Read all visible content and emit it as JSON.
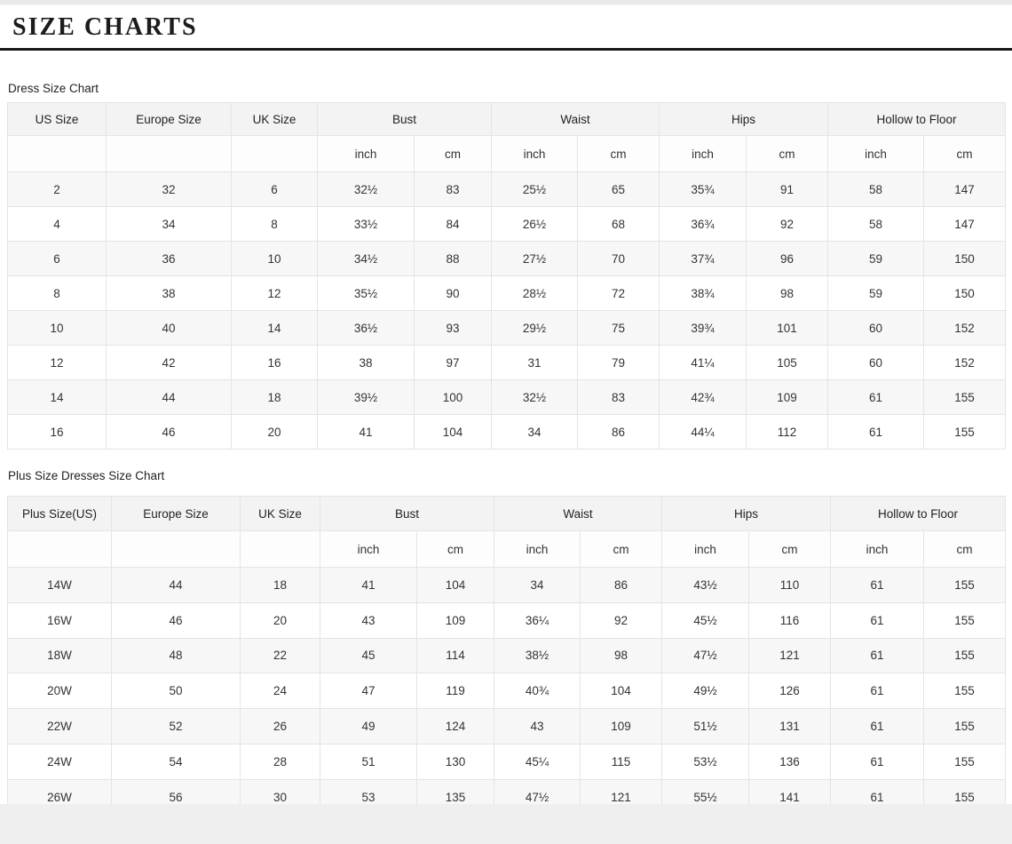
{
  "page": {
    "title": "SIZE CHARTS"
  },
  "tables": [
    {
      "caption": "Dress Size Chart",
      "size_column_headers": [
        "US Size",
        "Europe Size",
        "UK Size"
      ],
      "measure_group_headers": [
        "Bust",
        "Waist",
        "Hips",
        "Hollow to Floor"
      ],
      "unit_labels": [
        "inch",
        "cm"
      ],
      "rows": [
        [
          "2",
          "32",
          "6",
          "32½",
          "83",
          "25½",
          "65",
          "35¾",
          "91",
          "58",
          "147"
        ],
        [
          "4",
          "34",
          "8",
          "33½",
          "84",
          "26½",
          "68",
          "36¾",
          "92",
          "58",
          "147"
        ],
        [
          "6",
          "36",
          "10",
          "34½",
          "88",
          "27½",
          "70",
          "37¾",
          "96",
          "59",
          "150"
        ],
        [
          "8",
          "38",
          "12",
          "35½",
          "90",
          "28½",
          "72",
          "38¾",
          "98",
          "59",
          "150"
        ],
        [
          "10",
          "40",
          "14",
          "36½",
          "93",
          "29½",
          "75",
          "39¾",
          "101",
          "60",
          "152"
        ],
        [
          "12",
          "42",
          "16",
          "38",
          "97",
          "31",
          "79",
          "41¼",
          "105",
          "60",
          "152"
        ],
        [
          "14",
          "44",
          "18",
          "39½",
          "100",
          "32½",
          "83",
          "42¾",
          "109",
          "61",
          "155"
        ],
        [
          "16",
          "46",
          "20",
          "41",
          "104",
          "34",
          "86",
          "44¼",
          "112",
          "61",
          "155"
        ]
      ]
    },
    {
      "caption": "Plus Size Dresses Size Chart",
      "size_column_headers": [
        "Plus Size(US)",
        "Europe Size",
        "UK Size"
      ],
      "measure_group_headers": [
        "Bust",
        "Waist",
        "Hips",
        "Hollow to Floor"
      ],
      "unit_labels": [
        "inch",
        "cm"
      ],
      "rows": [
        [
          "14W",
          "44",
          "18",
          "41",
          "104",
          "34",
          "86",
          "43½",
          "110",
          "61",
          "155"
        ],
        [
          "16W",
          "46",
          "20",
          "43",
          "109",
          "36¼",
          "92",
          "45½",
          "116",
          "61",
          "155"
        ],
        [
          "18W",
          "48",
          "22",
          "45",
          "114",
          "38½",
          "98",
          "47½",
          "121",
          "61",
          "155"
        ],
        [
          "20W",
          "50",
          "24",
          "47",
          "119",
          "40¾",
          "104",
          "49½",
          "126",
          "61",
          "155"
        ],
        [
          "22W",
          "52",
          "26",
          "49",
          "124",
          "43",
          "109",
          "51½",
          "131",
          "61",
          "155"
        ],
        [
          "24W",
          "54",
          "28",
          "51",
          "130",
          "45¼",
          "115",
          "53½",
          "136",
          "61",
          "155"
        ],
        [
          "26W",
          "56",
          "30",
          "53",
          "135",
          "47½",
          "121",
          "55½",
          "141",
          "61",
          "155"
        ]
      ]
    }
  ],
  "colors": {
    "header_bg": "#f3f3f3",
    "zebra_bg": "#f7f7f7",
    "border": "#e4e4e4",
    "title_rule": "#1a1a1a",
    "bottom_band": "#efefef"
  }
}
